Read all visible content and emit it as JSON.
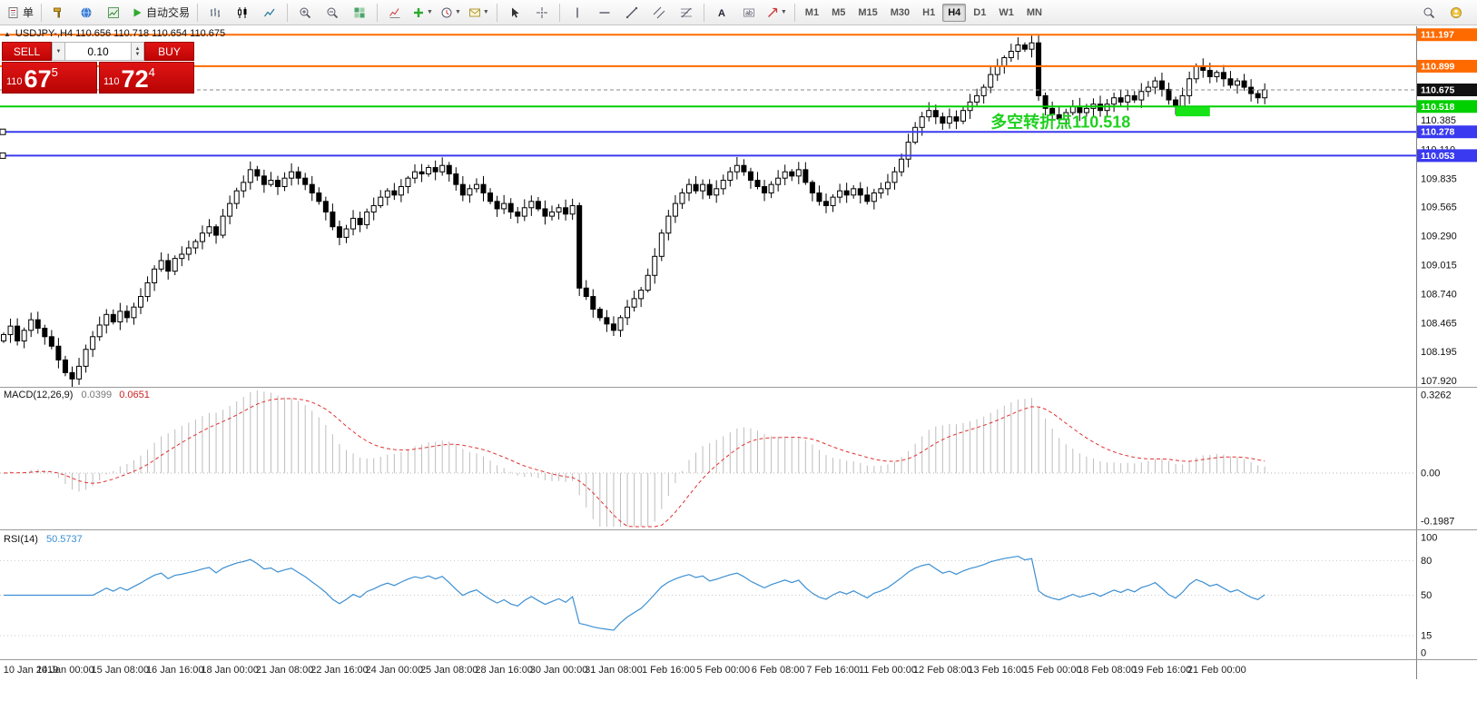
{
  "toolbar": {
    "items": [
      {
        "type": "button",
        "icon": "order",
        "label": "单",
        "name": "new-order-button"
      },
      {
        "type": "sep"
      },
      {
        "type": "button",
        "icon": "hammer",
        "name": "tools-button"
      },
      {
        "type": "button",
        "icon": "globe",
        "name": "market-browser-button"
      },
      {
        "type": "button",
        "icon": "profile",
        "name": "profiles-button"
      },
      {
        "type": "button",
        "icon": "play",
        "label": "自动交易",
        "name": "auto-trading-button"
      },
      {
        "type": "sep"
      },
      {
        "type": "button",
        "icon": "bars",
        "name": "bar-chart-button"
      },
      {
        "type": "button",
        "icon": "candles",
        "name": "candlestick-chart-button"
      },
      {
        "type": "button",
        "icon": "linechart",
        "name": "line-chart-button"
      },
      {
        "type": "sep"
      },
      {
        "type": "button",
        "icon": "zoomin",
        "name": "zoom-in-button"
      },
      {
        "type": "button",
        "icon": "zoomout",
        "name": "zoom-out-button"
      },
      {
        "type": "button",
        "icon": "tile",
        "name": "tile-windows-button"
      },
      {
        "type": "sep"
      },
      {
        "type": "button",
        "icon": "indicators",
        "name": "indicators-button"
      },
      {
        "type": "button",
        "icon": "plus",
        "name": "add-indicator-button",
        "drop": true
      },
      {
        "type": "button",
        "icon": "clock",
        "name": "periods-button",
        "drop": true
      },
      {
        "type": "button",
        "icon": "mail",
        "name": "alerts-button",
        "drop": true
      },
      {
        "type": "sep"
      },
      {
        "type": "button",
        "icon": "cursor",
        "name": "cursor-button"
      },
      {
        "type": "button",
        "icon": "crosshair",
        "name": "crosshair-button"
      },
      {
        "type": "sep"
      },
      {
        "type": "button",
        "icon": "vline",
        "name": "vertical-line-button"
      },
      {
        "type": "button",
        "icon": "hline",
        "name": "horizontal-line-button"
      },
      {
        "type": "button",
        "icon": "trendline",
        "name": "trendline-button"
      },
      {
        "type": "button",
        "icon": "channel",
        "name": "equidistant-channel-button"
      },
      {
        "type": "button",
        "icon": "fibo",
        "name": "fibonacci-button"
      },
      {
        "type": "sep"
      },
      {
        "type": "button",
        "icon": "text",
        "name": "text-button"
      },
      {
        "type": "button",
        "icon": "label",
        "name": "text-label-button"
      },
      {
        "type": "button",
        "icon": "shapes",
        "name": "arrows-button",
        "drop": true
      },
      {
        "type": "sep"
      }
    ],
    "timeframes": [
      "M1",
      "M5",
      "M15",
      "M30",
      "H1",
      "H4",
      "D1",
      "W1",
      "MN"
    ],
    "active_timeframe": "H4",
    "right_items": [
      {
        "icon": "search",
        "name": "search-button"
      },
      {
        "icon": "community",
        "name": "community-button"
      }
    ]
  },
  "chart_header": {
    "collapse_icon": "▲",
    "symbol_info": "USDJPY-,H4 110.656 110.718 110.654 110.675"
  },
  "trade_panel": {
    "sell_label": "SELL",
    "buy_label": "BUY",
    "lot_value": "0.10",
    "sell_price": {
      "prefix": "110",
      "big": "67",
      "sup": "5"
    },
    "buy_price": {
      "prefix": "110",
      "big": "72",
      "sup": "4"
    }
  },
  "indicators": {
    "macd": {
      "label": "MACD(12,26,9)",
      "value_main": "0.0399",
      "value_signal": "0.0651",
      "axis_top": "0.3262",
      "axis_zero": "0.00",
      "axis_bottom": "-0.1987",
      "params": [
        12,
        26,
        9
      ]
    },
    "rsi": {
      "label": "RSI(14)",
      "value": "50.5737",
      "period": 14,
      "axis": [
        100,
        80,
        50,
        15,
        0
      ],
      "guide_levels": [
        80,
        50,
        15
      ]
    }
  },
  "chart_data": {
    "type": "candlestick",
    "symbol": "USDJPY-",
    "timeframe": "H4",
    "view": {
      "price_top": 111.25,
      "price_bottom": 107.9,
      "bars_visible": 185
    },
    "first_open": 108.3,
    "closes": [
      108.36,
      108.44,
      108.3,
      108.4,
      108.5,
      108.42,
      108.34,
      108.25,
      108.12,
      108.0,
      107.94,
      108.06,
      108.22,
      108.34,
      108.45,
      108.55,
      108.48,
      108.58,
      108.52,
      108.62,
      108.72,
      108.85,
      108.98,
      109.06,
      108.96,
      109.08,
      109.12,
      109.18,
      109.24,
      109.32,
      109.38,
      109.3,
      109.48,
      109.6,
      109.72,
      109.8,
      109.92,
      109.86,
      109.78,
      109.82,
      109.76,
      109.84,
      109.9,
      109.84,
      109.78,
      109.7,
      109.62,
      109.52,
      109.38,
      109.28,
      109.36,
      109.46,
      109.4,
      109.52,
      109.58,
      109.66,
      109.72,
      109.68,
      109.76,
      109.84,
      109.9,
      109.88,
      109.94,
      109.9,
      109.96,
      109.88,
      109.78,
      109.68,
      109.74,
      109.78,
      109.7,
      109.62,
      109.55,
      109.6,
      109.52,
      109.48,
      109.56,
      109.62,
      109.55,
      109.48,
      109.52,
      109.56,
      109.5,
      109.58,
      108.8,
      108.72,
      108.6,
      108.52,
      108.46,
      108.4,
      108.52,
      108.62,
      108.7,
      108.78,
      108.92,
      109.1,
      109.32,
      109.48,
      109.6,
      109.7,
      109.78,
      109.72,
      109.78,
      109.68,
      109.74,
      109.82,
      109.9,
      109.96,
      109.9,
      109.82,
      109.76,
      109.7,
      109.78,
      109.84,
      109.9,
      109.86,
      109.92,
      109.8,
      109.7,
      109.62,
      109.58,
      109.66,
      109.72,
      109.68,
      109.74,
      109.68,
      109.62,
      109.7,
      109.74,
      109.8,
      109.9,
      110.02,
      110.18,
      110.32,
      110.42,
      110.48,
      110.42,
      110.36,
      110.42,
      110.38,
      110.48,
      110.56,
      110.62,
      110.7,
      110.82,
      110.9,
      110.98,
      111.04,
      111.1,
      111.06,
      111.12,
      110.62,
      110.5,
      110.44,
      110.4,
      110.46,
      110.52,
      110.46,
      110.5,
      110.54,
      110.48,
      110.54,
      110.6,
      110.56,
      110.62,
      110.58,
      110.66,
      110.7,
      110.76,
      110.68,
      110.58,
      110.52,
      110.62,
      110.78,
      110.9,
      110.86,
      110.8,
      110.84,
      110.78,
      110.72,
      110.76,
      110.7,
      110.64,
      110.6,
      110.675
    ],
    "price_ticks": [
      110.385,
      110.11,
      109.835,
      109.565,
      109.29,
      109.015,
      108.74,
      108.465,
      108.195,
      107.92
    ],
    "levels": [
      {
        "price": 111.197,
        "color": "#ff6a00",
        "style": "solid",
        "width": 2,
        "badge": "111.197"
      },
      {
        "price": 110.899,
        "color": "#ff6a00",
        "style": "solid",
        "width": 2,
        "badge": "110.899"
      },
      {
        "price": 110.675,
        "color": "#8a8a8a",
        "style": "dashed",
        "width": 1,
        "badge": "110.675",
        "badge_bg": "#111111",
        "role": "bid"
      },
      {
        "price": 110.518,
        "color": "#00cf00",
        "style": "solid",
        "width": 2,
        "badge": "110.518"
      },
      {
        "price": 110.278,
        "color": "#3a3af0",
        "style": "solid",
        "width": 2,
        "badge": "110.278",
        "handle": true
      },
      {
        "price": 110.053,
        "color": "#3a3af0",
        "style": "solid",
        "width": 2,
        "badge": "110.053",
        "handle": true
      }
    ],
    "annotation": {
      "text": "多空转折点110.518",
      "color": "#1fd11f",
      "bar": 144,
      "price": 110.32
    },
    "highlight": {
      "bar_start": 171,
      "bar_end": 176,
      "price_top": 110.515,
      "price_bottom": 110.425,
      "color": "#17e317"
    },
    "time_labels": [
      "10 Jan 2019",
      "14 Jan 00:00",
      "15 Jan 08:00",
      "16 Jan 16:00",
      "18 Jan 00:00",
      "21 Jan 08:00",
      "22 Jan 16:00",
      "24 Jan 00:00",
      "25 Jan 08:00",
      "28 Jan 16:00",
      "30 Jan 00:00",
      "31 Jan 08:00",
      "1 Feb 16:00",
      "5 Feb 00:00",
      "6 Feb 08:00",
      "7 Feb 16:00",
      "11 Feb 00:00",
      "12 Feb 08:00",
      "13 Feb 16:00",
      "15 Feb 00:00",
      "18 Feb 08:00",
      "19 Feb 16:00",
      "21 Feb 00:00"
    ],
    "time_label_start_bar": 1,
    "time_label_step": 8
  }
}
